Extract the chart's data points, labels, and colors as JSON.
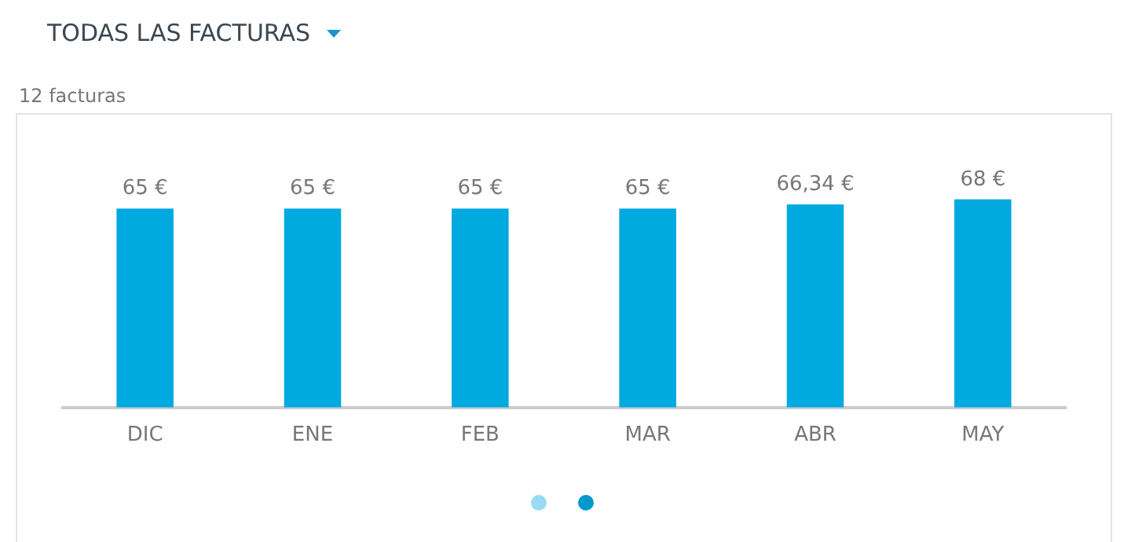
{
  "chart_data": {
    "type": "bar",
    "title": "TODAS LAS FACTURAS",
    "subtitle": "12 facturas",
    "categories": [
      "DIC",
      "ENE",
      "FEB",
      "MAR",
      "ABR",
      "MAY"
    ],
    "values": [
      65,
      65,
      65,
      65,
      66.34,
      68
    ],
    "value_labels": [
      "65 €",
      "65 €",
      "65 €",
      "65 €",
      "66,34 €",
      "68 €"
    ],
    "color": "#00a9e0",
    "grid": false,
    "legend": false
  }
}
